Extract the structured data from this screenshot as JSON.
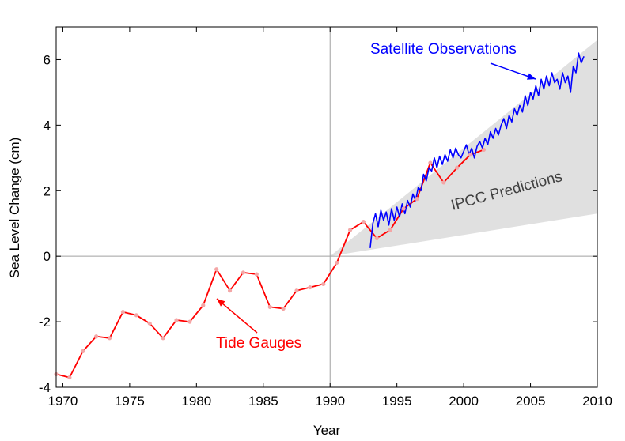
{
  "chart_data": {
    "type": "line",
    "xlabel": "Year",
    "ylabel": "Sea Level Change (cm)",
    "xlim": [
      1969.5,
      2010
    ],
    "ylim": [
      -4,
      7
    ],
    "x_ticks": [
      1970,
      1975,
      1980,
      1985,
      1990,
      1995,
      2000,
      2005,
      2010
    ],
    "y_ticks": [
      -4,
      -2,
      0,
      2,
      4,
      6
    ],
    "x_tick_labels": [
      "1970",
      "1975",
      "1980",
      "1985",
      "1990",
      "1995",
      "2000",
      "2005",
      "2010"
    ],
    "y_tick_labels": [
      "-4",
      "-2",
      "0",
      "2",
      "4",
      "6"
    ],
    "reference_lines": {
      "horizontal_y": 0,
      "vertical_x": 1990
    },
    "colors": {
      "tide_gauges": "#ff0000",
      "tide_markers": "#f4a6a6",
      "satellite": "#0000ff",
      "ipcc_band": "#e0e0e0",
      "ipcc_text": "#404040",
      "reference": "#a0a0a0"
    },
    "annotations": {
      "tide_gauges": "Tide Gauges",
      "satellite": "Satellite Observations",
      "ipcc": "IPCC Predictions"
    },
    "ipcc_band": {
      "x": [
        1990,
        2010
      ],
      "lower": [
        0,
        1.3
      ],
      "upper": [
        0,
        6.6
      ]
    },
    "series": [
      {
        "key": "tide_gauges",
        "x": [
          1969.5,
          1970.5,
          1971.5,
          1972.5,
          1973.5,
          1974.5,
          1975.5,
          1976.5,
          1977.5,
          1978.5,
          1979.5,
          1980.5,
          1981.5,
          1982.5,
          1983.5,
          1984.5,
          1985.5,
          1986.5,
          1987.5,
          1988.5,
          1989.5,
          1990.5,
          1991.5,
          1992.5,
          1993.5,
          1994.5,
          1995.5,
          1996.5,
          1997.5,
          1998.5,
          1999.5,
          2000.5,
          2001.5
        ],
        "y": [
          -3.6,
          -3.7,
          -2.9,
          -2.45,
          -2.5,
          -1.7,
          -1.8,
          -2.05,
          -2.5,
          -1.95,
          -2.0,
          -1.5,
          -0.4,
          -1.05,
          -0.5,
          -0.55,
          -1.55,
          -1.6,
          -1.05,
          -0.95,
          -0.85,
          -0.2,
          0.8,
          1.05,
          0.55,
          0.8,
          1.45,
          1.75,
          2.85,
          2.25,
          2.7,
          3.1,
          3.25
        ]
      },
      {
        "key": "satellite",
        "x": [
          1993.0,
          1993.2,
          1993.4,
          1993.6,
          1993.8,
          1994.0,
          1994.2,
          1994.4,
          1994.6,
          1994.8,
          1995.0,
          1995.2,
          1995.4,
          1995.6,
          1995.8,
          1996.0,
          1996.2,
          1996.4,
          1996.6,
          1996.8,
          1997.0,
          1997.2,
          1997.4,
          1997.6,
          1997.8,
          1998.0,
          1998.2,
          1998.4,
          1998.6,
          1998.8,
          1999.0,
          1999.2,
          1999.4,
          1999.6,
          1999.8,
          2000.0,
          2000.2,
          2000.4,
          2000.6,
          2000.8,
          2001.0,
          2001.2,
          2001.4,
          2001.6,
          2001.8,
          2002.0,
          2002.2,
          2002.4,
          2002.6,
          2002.8,
          2003.0,
          2003.2,
          2003.4,
          2003.6,
          2003.8,
          2004.0,
          2004.2,
          2004.4,
          2004.6,
          2004.8,
          2005.0,
          2005.2,
          2005.4,
          2005.6,
          2005.8,
          2006.0,
          2006.2,
          2006.4,
          2006.6,
          2006.8,
          2007.0,
          2007.2,
          2007.4,
          2007.6,
          2007.8,
          2008.0,
          2008.2,
          2008.4,
          2008.6,
          2008.8,
          2009.0
        ],
        "y": [
          0.25,
          1.0,
          1.3,
          0.9,
          1.4,
          1.1,
          1.35,
          0.95,
          1.45,
          1.1,
          1.5,
          1.2,
          1.6,
          1.3,
          1.7,
          1.5,
          1.9,
          1.7,
          2.1,
          2.0,
          2.5,
          2.3,
          2.7,
          2.6,
          3.0,
          2.7,
          3.05,
          2.8,
          3.1,
          2.9,
          3.25,
          3.0,
          3.3,
          3.1,
          3.0,
          3.2,
          3.4,
          3.1,
          3.3,
          3.0,
          3.35,
          3.5,
          3.3,
          3.6,
          3.4,
          3.8,
          3.6,
          3.9,
          3.7,
          4.0,
          4.2,
          3.9,
          4.3,
          4.1,
          4.5,
          4.3,
          4.6,
          4.4,
          4.9,
          4.6,
          5.0,
          4.8,
          5.2,
          4.9,
          5.4,
          5.1,
          5.5,
          5.2,
          5.6,
          5.3,
          5.4,
          5.1,
          5.6,
          5.3,
          5.5,
          5.0,
          5.8,
          5.6,
          6.2,
          5.9,
          6.1
        ]
      }
    ]
  }
}
